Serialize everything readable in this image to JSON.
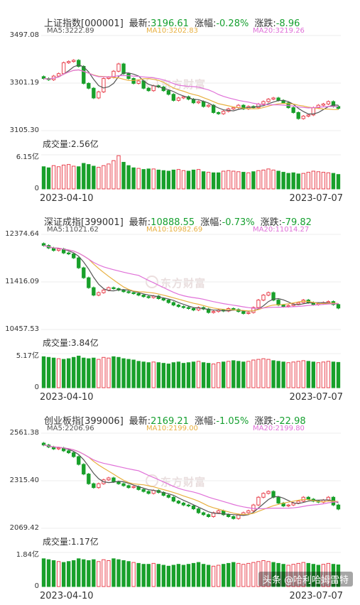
{
  "chart_data": [
    {
      "type": "candlestick",
      "header": {
        "name": "上证指数[000001]",
        "latest_label": "最新:",
        "latest": "3196.61",
        "pct_label": "涨幅:",
        "pct": "-0.28%",
        "chg_label": "涨跌:",
        "chg": "-8.96"
      },
      "ma": {
        "ma5": "MA5:3222.89",
        "ma10": "MA10:3202.83",
        "ma20": "MA20:3219.26"
      },
      "y_ticks": [
        "3497.08",
        "3301.19",
        "3105.30"
      ],
      "ylim": [
        3105.3,
        3497.08
      ],
      "volume_title": "成交量:2.56亿",
      "volume_ticks": [
        "6.15亿",
        "0"
      ],
      "volume_max": 6.15,
      "x_start": "2023-04-10",
      "x_end": "2023-07-07",
      "close": [
        3320,
        3315,
        3330,
        3340,
        3385,
        3390,
        3395,
        3370,
        3300,
        3280,
        3240,
        3265,
        3320,
        3325,
        3350,
        3380,
        3340,
        3320,
        3300,
        3310,
        3280,
        3270,
        3290,
        3285,
        3270,
        3255,
        3230,
        3240,
        3245,
        3235,
        3220,
        3225,
        3205,
        3210,
        3180,
        3175,
        3185,
        3195,
        3200,
        3210,
        3195,
        3205,
        3200,
        3215,
        3225,
        3235,
        3240,
        3230,
        3220,
        3200,
        3180,
        3155,
        3165,
        3170,
        3200,
        3210,
        3215,
        3225,
        3205,
        3197
      ],
      "volume": [
        4.0,
        3.8,
        4.2,
        4.0,
        4.3,
        4.4,
        4.1,
        4.0,
        4.6,
        4.4,
        4.1,
        3.9,
        4.2,
        4.5,
        5.1,
        6.0,
        4.8,
        4.2,
        3.8,
        3.7,
        3.5,
        3.6,
        3.6,
        3.4,
        3.3,
        3.2,
        3.4,
        3.5,
        3.3,
        3.2,
        3.4,
        3.5,
        3.1,
        3.0,
        2.9,
        2.9,
        3.2,
        3.3,
        3.2,
        3.1,
        3.0,
        2.9,
        3.1,
        3.3,
        3.4,
        3.6,
        3.4,
        3.2,
        3.0,
        2.8,
        2.9,
        2.7,
        2.8,
        3.0,
        3.2,
        3.1,
        3.0,
        2.9,
        2.8,
        2.6
      ]
    },
    {
      "type": "candlestick",
      "header": {
        "name": "深证成指[399001]",
        "latest_label": "最新:",
        "latest": "10888.55",
        "pct_label": "涨幅:",
        "pct": "-0.73%",
        "chg_label": "涨跌:",
        "chg": "-79.82"
      },
      "ma": {
        "ma5": "MA5:11021.62",
        "ma10": "MA10:10982.69",
        "ma20": "MA20:11014.27"
      },
      "y_ticks": [
        "12374.64",
        "11416.09",
        "10457.53"
      ],
      "ylim": [
        10457.53,
        12374.64
      ],
      "volume_title": "成交量:3.84亿",
      "volume_ticks": [
        "5.17亿",
        "0"
      ],
      "volume_max": 5.17,
      "x_start": "2023-04-10",
      "x_end": "2023-07-07",
      "close": [
        12150,
        12100,
        12050,
        12080,
        12000,
        11980,
        11900,
        11700,
        11500,
        11300,
        11150,
        11200,
        11250,
        11300,
        11280,
        11250,
        11220,
        11200,
        11180,
        11150,
        11120,
        11100,
        11130,
        11080,
        11050,
        11000,
        10950,
        10920,
        10900,
        10880,
        10850,
        10900,
        10870,
        10800,
        10820,
        10850,
        10830,
        10880,
        10860,
        10820,
        10780,
        10800,
        10900,
        11050,
        11150,
        11200,
        11050,
        10950,
        10920,
        10940,
        10970,
        11000,
        11050,
        11000,
        10960,
        10980,
        11000,
        11020,
        10960,
        10889
      ],
      "volume": [
        4.7,
        4.6,
        4.5,
        4.4,
        4.3,
        4.4,
        4.6,
        4.8,
        4.5,
        4.4,
        4.5,
        4.3,
        4.6,
        4.5,
        4.7,
        4.6,
        4.4,
        4.3,
        4.2,
        4.0,
        3.9,
        3.8,
        3.9,
        3.8,
        3.7,
        3.6,
        3.8,
        3.9,
        3.7,
        3.8,
        3.9,
        4.0,
        3.8,
        3.7,
        3.6,
        3.8,
        3.9,
        4.0,
        4.1,
        4.0,
        3.9,
        4.0,
        4.2,
        4.3,
        4.4,
        4.3,
        4.1,
        4.0,
        3.9,
        3.8,
        3.9,
        4.0,
        4.1,
        4.0,
        3.9,
        3.8,
        3.9,
        4.0,
        3.9,
        3.84
      ]
    },
    {
      "type": "candlestick",
      "header": {
        "name": "创业板指[399006]",
        "latest_label": "最新:",
        "latest": "2169.21",
        "pct_label": "涨幅:",
        "pct": "-1.05%",
        "chg_label": "涨跌:",
        "chg": "-22.98"
      },
      "ma": {
        "ma5": "MA5:2206.96",
        "ma10": "MA10:2199.00",
        "ma20": "MA20:2199.80"
      },
      "y_ticks": [
        "2561.38",
        "2315.40",
        "2069.42"
      ],
      "ylim": [
        2069.42,
        2561.38
      ],
      "volume_title": "成交量:1.17亿",
      "volume_ticks": [
        "1.84亿",
        "0"
      ],
      "volume_max": 1.84,
      "x_start": "2023-04-10",
      "x_end": "2023-07-07",
      "close": [
        2500,
        2490,
        2480,
        2485,
        2470,
        2460,
        2440,
        2400,
        2350,
        2300,
        2280,
        2300,
        2320,
        2330,
        2310,
        2300,
        2290,
        2280,
        2285,
        2270,
        2260,
        2250,
        2265,
        2255,
        2240,
        2230,
        2210,
        2200,
        2190,
        2185,
        2170,
        2150,
        2140,
        2130,
        2150,
        2160,
        2140,
        2130,
        2120,
        2140,
        2150,
        2160,
        2190,
        2230,
        2250,
        2260,
        2230,
        2200,
        2185,
        2190,
        2200,
        2210,
        2230,
        2220,
        2210,
        2205,
        2215,
        2230,
        2190,
        2169
      ],
      "volume": [
        1.5,
        1.45,
        1.4,
        1.35,
        1.3,
        1.35,
        1.4,
        1.5,
        1.45,
        1.4,
        1.45,
        1.35,
        1.45,
        1.4,
        1.5,
        1.45,
        1.4,
        1.35,
        1.3,
        1.25,
        1.2,
        1.2,
        1.25,
        1.2,
        1.15,
        1.1,
        1.15,
        1.2,
        1.15,
        1.2,
        1.25,
        1.3,
        1.2,
        1.15,
        1.1,
        1.15,
        1.2,
        1.25,
        1.3,
        1.25,
        1.2,
        1.25,
        1.3,
        1.35,
        1.4,
        1.35,
        1.3,
        1.25,
        1.2,
        1.15,
        1.2,
        1.25,
        1.3,
        1.25,
        1.2,
        1.15,
        1.2,
        1.25,
        1.2,
        1.17
      ]
    }
  ],
  "watermark": "东方财富",
  "footer": "头条 @哈利哈姆雷特",
  "colors": {
    "up": "#e8404c",
    "down": "#18a02a",
    "ma5": "#555555",
    "ma10": "#e8b040",
    "ma20": "#e070d8"
  }
}
